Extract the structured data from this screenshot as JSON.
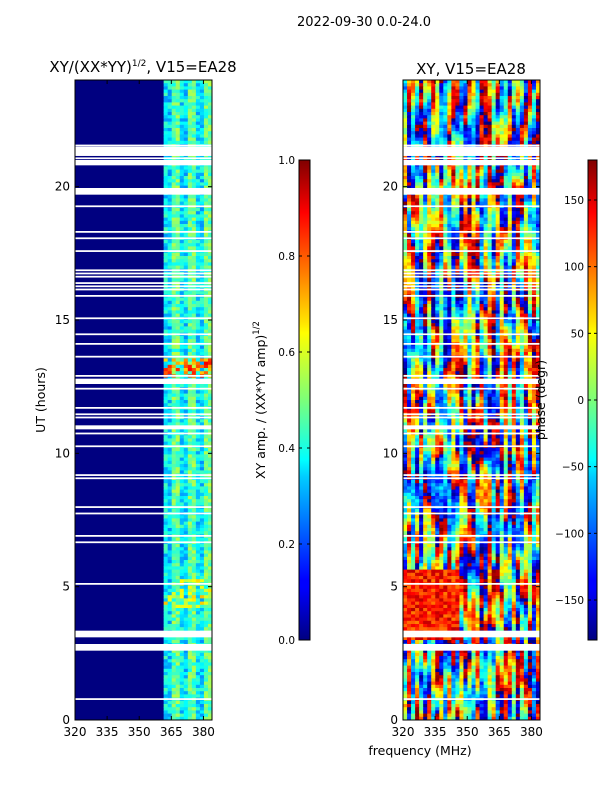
{
  "suptitle": "2022-09-30 0.0-24.0",
  "shared_xlabel": "frequency (MHz)",
  "chart_data": [
    {
      "type": "heatmap",
      "panel": "left",
      "title_base": "XY/(XX*YY)",
      "title_sup": "1/2",
      "title_suffix": ", V15=EA28",
      "ylabel": "UT (hours)",
      "xlim": [
        320,
        384
      ],
      "ylim": [
        0,
        24
      ],
      "xticks": [
        "320",
        "335",
        "350",
        "365",
        "380"
      ],
      "xtick_values": [
        320,
        335,
        350,
        365,
        380
      ],
      "yticks": [
        "0",
        "5",
        "10",
        "15",
        "20"
      ],
      "ytick_values": [
        0,
        5,
        10,
        15,
        20
      ],
      "colorbar": {
        "label": "XY amp. / (XX*YY amp)",
        "label_sup": "1/2",
        "range": [
          0.0,
          1.0
        ],
        "ticks": [
          "0.0",
          "0.2",
          "0.4",
          "0.6",
          "0.8",
          "1.0"
        ],
        "tick_values": [
          0.0,
          0.2,
          0.4,
          0.6,
          0.8,
          1.0
        ]
      }
    },
    {
      "type": "heatmap",
      "panel": "right",
      "title": "XY, V15=EA28",
      "xlim": [
        320,
        384
      ],
      "ylim": [
        0,
        24
      ],
      "xticks": [
        "320",
        "335",
        "350",
        "365",
        "380"
      ],
      "xtick_values": [
        320,
        335,
        350,
        365,
        380
      ],
      "yticks": [
        "0",
        "5",
        "10",
        "15",
        "20"
      ],
      "ytick_values": [
        0,
        5,
        10,
        15,
        20
      ],
      "colorbar": {
        "label": "phase (degr)",
        "range": [
          -180,
          180
        ],
        "ticks": [
          "−150",
          "−100",
          "−50",
          "0",
          "50",
          "100",
          "150"
        ],
        "tick_values": [
          -150,
          -100,
          -50,
          0,
          50,
          100,
          150
        ]
      }
    }
  ]
}
